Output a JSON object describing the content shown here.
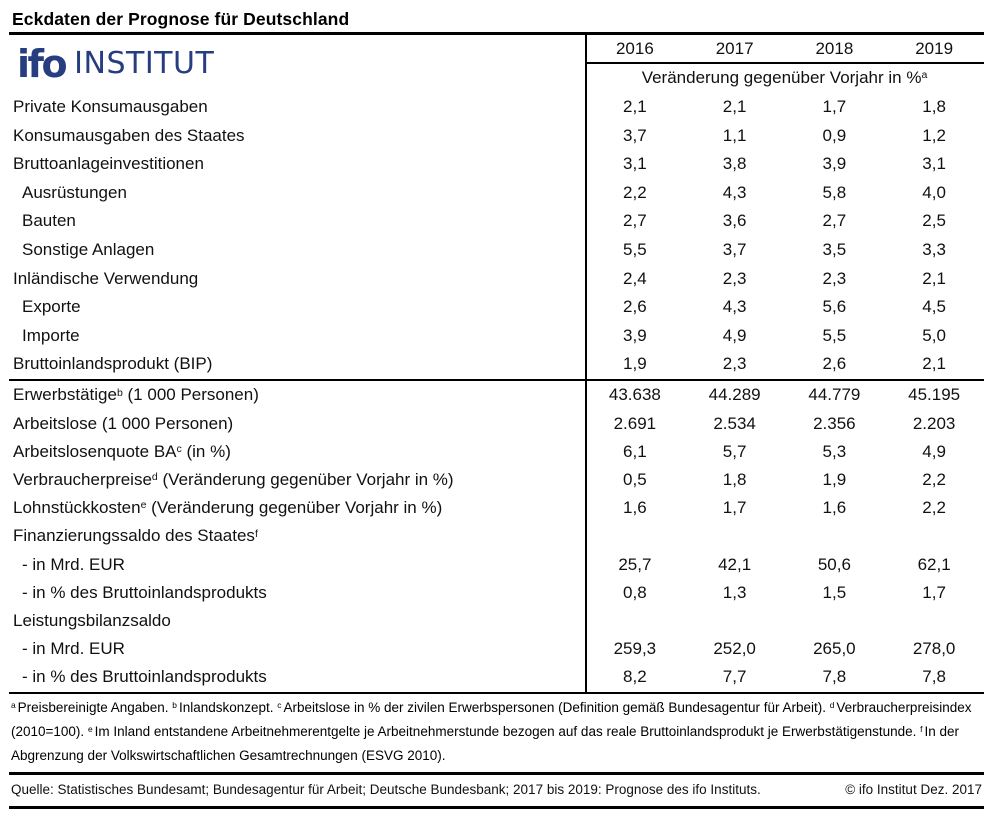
{
  "title": "Eckdaten der Prognose für Deutschland",
  "logo": {
    "brand": "ifo",
    "suffix": "INSTITUT",
    "color": "#263d7f"
  },
  "header": {
    "years": [
      "2016",
      "2017",
      "2018",
      "2019"
    ],
    "subheader": "Veränderung gegenüber Vorjahr in %",
    "subheader_sup": "a"
  },
  "table": {
    "section_top": [
      {
        "pre": "Private Konsumausgaben",
        "sup": "",
        "post": "",
        "indent": false,
        "values": [
          "2,1",
          "2,1",
          "1,7",
          "1,8"
        ]
      },
      {
        "pre": "Konsumausgaben des Staates",
        "sup": "",
        "post": "",
        "indent": false,
        "values": [
          "3,7",
          "1,1",
          "0,9",
          "1,2"
        ]
      },
      {
        "pre": "Bruttoanlageinvestitionen",
        "sup": "",
        "post": "",
        "indent": false,
        "values": [
          "3,1",
          "3,8",
          "3,9",
          "3,1"
        ]
      },
      {
        "pre": "Ausrüstungen",
        "sup": "",
        "post": "",
        "indent": true,
        "values": [
          "2,2",
          "4,3",
          "5,8",
          "4,0"
        ]
      },
      {
        "pre": "Bauten",
        "sup": "",
        "post": "",
        "indent": true,
        "values": [
          "2,7",
          "3,6",
          "2,7",
          "2,5"
        ]
      },
      {
        "pre": "Sonstige Anlagen",
        "sup": "",
        "post": "",
        "indent": true,
        "values": [
          "5,5",
          "3,7",
          "3,5",
          "3,3"
        ]
      },
      {
        "pre": "Inländische Verwendung",
        "sup": "",
        "post": "",
        "indent": false,
        "values": [
          "2,4",
          "2,3",
          "2,3",
          "2,1"
        ]
      },
      {
        "pre": "Exporte",
        "sup": "",
        "post": "",
        "indent": true,
        "values": [
          "2,6",
          "4,3",
          "5,6",
          "4,5"
        ]
      },
      {
        "pre": "Importe",
        "sup": "",
        "post": "",
        "indent": true,
        "values": [
          "3,9",
          "4,9",
          "5,5",
          "5,0"
        ]
      },
      {
        "pre": "Bruttoinlandsprodukt (BIP)",
        "sup": "",
        "post": "",
        "indent": false,
        "values": [
          "1,9",
          "2,3",
          "2,6",
          "2,1"
        ]
      }
    ],
    "section_bottom": [
      {
        "pre": "Erwerbstätige",
        "sup": "b",
        "post": " (1 000 Personen)",
        "indent": false,
        "values": [
          "43.638",
          "44.289",
          "44.779",
          "45.195"
        ]
      },
      {
        "pre": "Arbeitslose (1 000 Personen)",
        "sup": "",
        "post": "",
        "indent": false,
        "values": [
          "2.691",
          "2.534",
          "2.356",
          "2.203"
        ]
      },
      {
        "pre": "Arbeitslosenquote BA",
        "sup": "c",
        "post": " (in %)",
        "indent": false,
        "values": [
          "6,1",
          "5,7",
          "5,3",
          "4,9"
        ]
      },
      {
        "pre": "Verbraucherpreise",
        "sup": "d",
        "post": " (Veränderung gegenüber Vorjahr in %)",
        "indent": false,
        "values": [
          "0,5",
          "1,8",
          "1,9",
          "2,2"
        ]
      },
      {
        "pre": "Lohnstückkosten",
        "sup": "e",
        "post": " (Veränderung gegenüber Vorjahr in %)",
        "indent": false,
        "values": [
          "1,6",
          "1,7",
          "1,6",
          "2,2"
        ]
      },
      {
        "pre": "Finanzierungssaldo des Staates",
        "sup": "f",
        "post": "",
        "indent": false,
        "values": [
          "",
          "",
          "",
          ""
        ]
      },
      {
        "pre": "- in Mrd. EUR",
        "sup": "",
        "post": "",
        "indent": true,
        "values": [
          "25,7",
          "42,1",
          "50,6",
          "62,1"
        ]
      },
      {
        "pre": "- in % des Bruttoinlandsprodukts",
        "sup": "",
        "post": "",
        "indent": true,
        "values": [
          "0,8",
          "1,3",
          "1,5",
          "1,7"
        ]
      },
      {
        "pre": "Leistungsbilanzsaldo",
        "sup": "",
        "post": "",
        "indent": false,
        "values": [
          "",
          "",
          "",
          ""
        ]
      },
      {
        "pre": "- in Mrd. EUR",
        "sup": "",
        "post": "",
        "indent": true,
        "values": [
          "259,3",
          "252,0",
          "265,0",
          "278,0"
        ]
      },
      {
        "pre": "- in % des Bruttoinlandsprodukts",
        "sup": "",
        "post": "",
        "indent": true,
        "values": [
          "8,2",
          "7,7",
          "7,8",
          "7,8"
        ]
      }
    ]
  },
  "footnotes": {
    "segments": [
      {
        "sup": "a",
        "text": "Preisbereinigte Angaben."
      },
      {
        "sup": "b",
        "text": "Inlandskonzept."
      },
      {
        "sup": "c",
        "text": "Arbeitslose in % der zivilen Erwerbspersonen (Definition gemäß Bundesagentur für Arbeit)."
      },
      {
        "sup": "d",
        "text": "Verbraucherpreisindex (2010=100)."
      },
      {
        "sup": "e",
        "text": "Im Inland entstandene Arbeitnehmerentgelte je Arbeitnehmerstunde bezogen auf das reale Bruttoinlandsprodukt je Erwerbstätigenstunde."
      },
      {
        "sup": "f",
        "text": "In der Abgrenzung der Volkswirtschaftlichen Gesamtrechnungen (ESVG 2010)."
      }
    ]
  },
  "source": {
    "left": "Quelle: Statistisches Bundesamt; Bundesagentur für Arbeit; Deutsche Bundesbank; 2017 bis 2019: Prognose des ifo Instituts.",
    "right": "© ifo Institut Dez. 2017"
  }
}
